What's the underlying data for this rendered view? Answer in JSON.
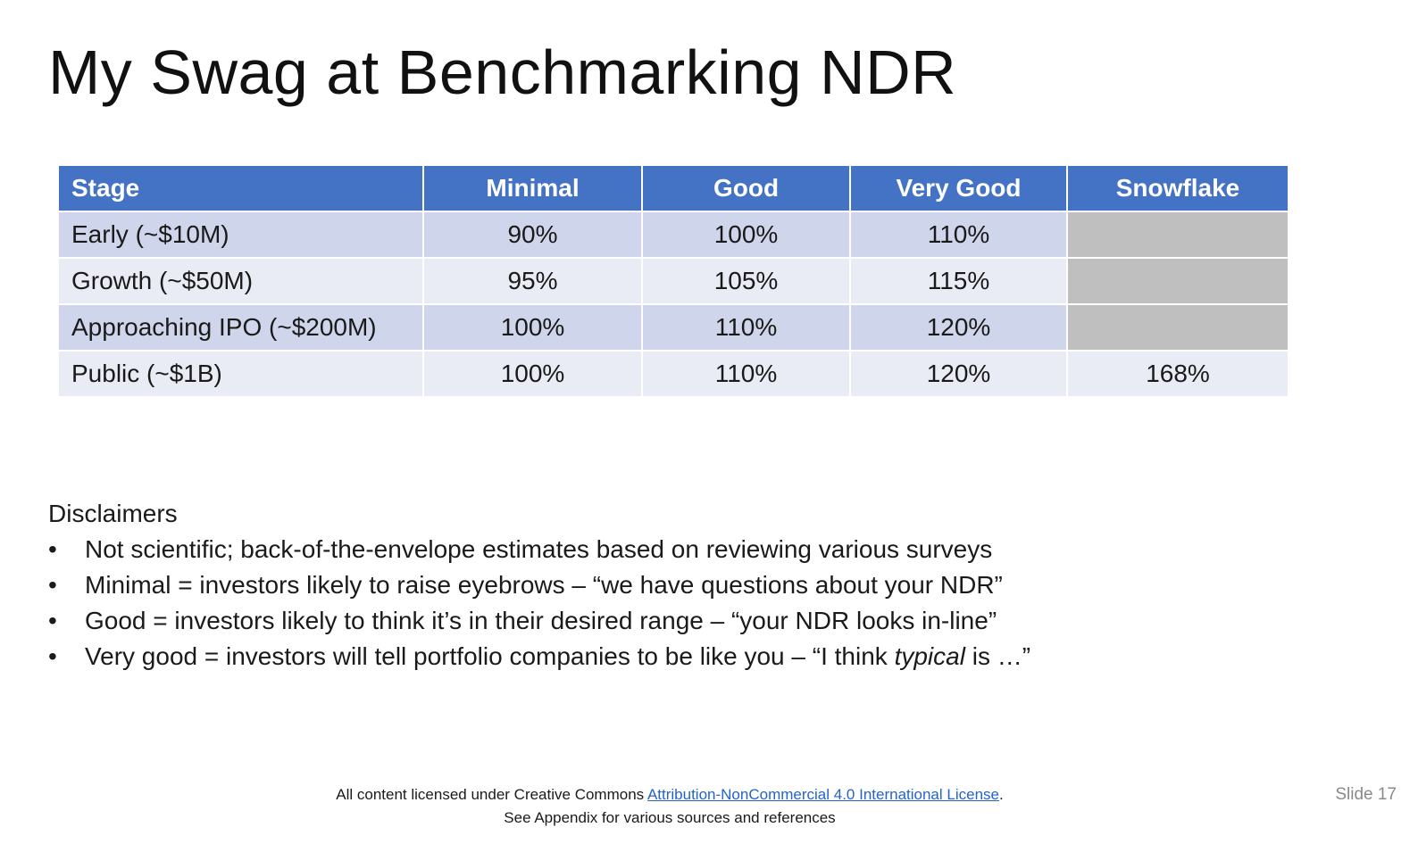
{
  "slide": {
    "title": "My Swag at Benchmarking NDR",
    "slide_number": "Slide 17"
  },
  "table": {
    "headers": [
      "Stage",
      "Minimal",
      "Good",
      "Very Good",
      "Snowflake"
    ],
    "rows": [
      {
        "stage": "Early (~$10M)",
        "minimal": "90%",
        "good": "100%",
        "very_good": "110%",
        "snowflake": ""
      },
      {
        "stage": "Growth (~$50M)",
        "minimal": "95%",
        "good": "105%",
        "very_good": "115%",
        "snowflake": ""
      },
      {
        "stage": "Approaching IPO (~$200M)",
        "minimal": "100%",
        "good": "110%",
        "very_good": "120%",
        "snowflake": ""
      },
      {
        "stage": "Public (~$1B)",
        "minimal": "100%",
        "good": "110%",
        "very_good": "120%",
        "snowflake": "168%"
      }
    ]
  },
  "disclaimers": {
    "heading": "Disclaimers",
    "bullet_glyph": "•",
    "items": [
      {
        "text": "Not scientific; back-of-the-envelope estimates based on reviewing various surveys"
      },
      {
        "text": "Minimal = investors likely to raise eyebrows – “we have questions about your NDR”"
      },
      {
        "text": "Good = investors likely to think it’s in their desired range – “your NDR looks in-line”"
      },
      {
        "before": "Very good = investors will tell portfolio companies to be like you – “I think ",
        "emphasis": "typical",
        "after": " is …”"
      }
    ]
  },
  "footer": {
    "license_prefix": "All content licensed under Creative Commons ",
    "license_link": "Attribution-NonCommercial 4.0 International License",
    "license_suffix": ".",
    "appendix_note": "See Appendix for various sources and references"
  },
  "colors": {
    "header_fill": "#4472c4",
    "row_dark": "#cfd5ea",
    "row_light": "#e9ebf5",
    "empty_cell": "#bfbfbf",
    "link": "#2563c9"
  }
}
